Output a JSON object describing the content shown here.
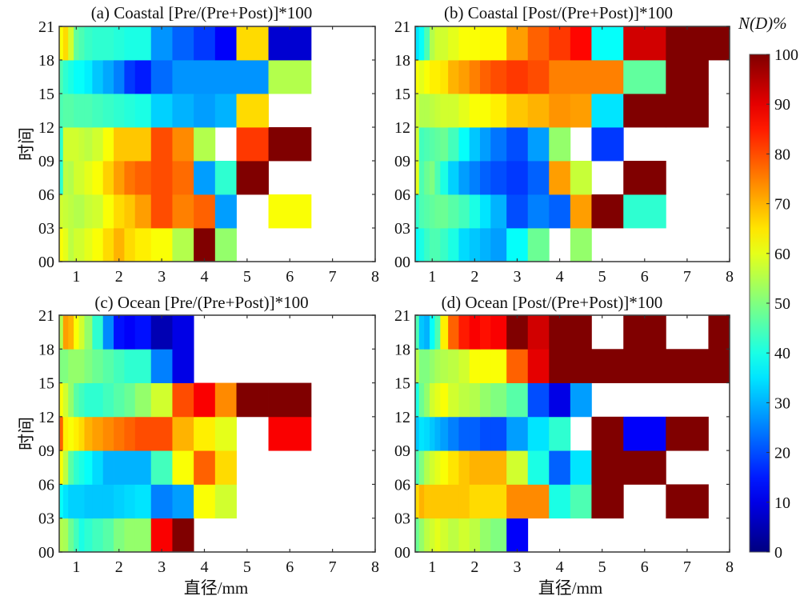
{
  "chart_data": {
    "type": "heatmap",
    "colormap": "jet",
    "colorbar": {
      "title": "N(D)%",
      "range": [
        0,
        100
      ],
      "ticks": [
        0,
        10,
        20,
        30,
        40,
        50,
        60,
        70,
        80,
        90,
        100
      ],
      "tick_labels": [
        "0",
        "10",
        "20",
        "30",
        "40",
        "50",
        "60",
        "70",
        "80",
        "90",
        "100"
      ],
      "placement": "right"
    },
    "x_bin_edges_mm": [
      0.6,
      0.69,
      0.81,
      0.94,
      1.06,
      1.19,
      1.375,
      1.625,
      1.875,
      2.125,
      2.375,
      2.75,
      3.25,
      3.75,
      4.25,
      4.75,
      5.5,
      6.5,
      7.5,
      8.0
    ],
    "xlim": [
      0.6,
      8.0
    ],
    "x_ticks": [
      1,
      2,
      3,
      4,
      5,
      6,
      7,
      8
    ],
    "x_tick_labels": [
      "1",
      "2",
      "3",
      "4",
      "5",
      "6",
      "7",
      "8"
    ],
    "y_bins": [
      "00-03",
      "03-06",
      "06-09",
      "09-12",
      "12-15",
      "15-18",
      "18-21"
    ],
    "y_ticks": [
      "00",
      "03",
      "06",
      "09",
      "12",
      "15",
      "18",
      "21"
    ],
    "xlabel": "直径/mm",
    "ylabel": "时间",
    "missing_color": "#ffffff",
    "panels": [
      {
        "id": "a",
        "title": "(a) Coastal [Pre/(Pre+Post)]*100",
        "show_ylabel": true,
        "show_xlabel": false,
        "values_rows_bottom_to_top": [
          [
            62,
            60,
            56,
            58,
            58,
            60,
            62,
            66,
            70,
            66,
            64,
            62,
            55,
            100,
            52,
            null,
            null,
            null,
            null
          ],
          [
            58,
            57,
            56,
            55,
            55,
            57,
            58,
            62,
            66,
            68,
            72,
            80,
            75,
            78,
            28,
            null,
            62,
            null,
            null
          ],
          [
            42,
            56,
            55,
            58,
            58,
            60,
            62,
            67,
            72,
            76,
            78,
            80,
            77,
            28,
            42,
            100,
            null,
            null,
            null
          ],
          [
            42,
            58,
            58,
            58,
            57,
            56,
            58,
            62,
            68,
            68,
            68,
            80,
            74,
            55,
            null,
            82,
            100,
            null,
            null
          ],
          [
            45,
            46,
            46,
            45,
            45,
            45,
            44,
            43,
            42,
            41,
            40,
            33,
            30,
            28,
            30,
            66,
            null,
            null,
            null
          ],
          [
            45,
            42,
            40,
            38,
            38,
            36,
            32,
            29,
            25,
            18,
            15,
            23,
            27,
            27,
            27,
            27,
            55,
            null,
            null
          ],
          [
            62,
            66,
            58,
            47,
            45,
            43,
            42,
            42,
            41,
            40,
            40,
            27,
            22,
            18,
            12,
            66,
            8,
            null,
            null
          ]
        ]
      },
      {
        "id": "b",
        "title": "(b) Coastal [Post/(Pre+Post)]*100",
        "show_ylabel": false,
        "show_xlabel": false,
        "values_rows_bottom_to_top": [
          [
            38,
            40,
            43,
            45,
            45,
            43,
            40,
            34,
            32,
            30,
            28,
            38,
            48,
            null,
            52,
            null,
            null,
            null,
            null
          ],
          [
            42,
            45,
            46,
            47,
            48,
            48,
            46,
            44,
            40,
            35,
            30,
            20,
            25,
            22,
            72,
            100,
            42,
            null,
            null
          ],
          [
            60,
            45,
            48,
            50,
            45,
            40,
            33,
            28,
            25,
            22,
            20,
            18,
            22,
            72,
            57,
            null,
            100,
            null,
            null
          ],
          [
            58,
            44,
            45,
            46,
            47,
            48,
            44,
            38,
            32,
            28,
            24,
            20,
            28,
            52,
            null,
            18,
            null,
            null,
            null
          ],
          [
            58,
            55,
            55,
            56,
            57,
            58,
            58,
            60,
            62,
            62,
            64,
            68,
            70,
            73,
            72,
            35,
            100,
            100,
            null
          ],
          [
            62,
            60,
            62,
            64,
            64,
            65,
            70,
            72,
            75,
            78,
            80,
            82,
            80,
            75,
            75,
            75,
            47,
            100,
            null
          ],
          [
            35,
            38,
            45,
            55,
            58,
            58,
            60,
            62,
            62,
            63,
            63,
            72,
            78,
            82,
            87,
            38,
            92,
            100,
            100
          ]
        ]
      },
      {
        "id": "c",
        "title": "(c) Ocean [Pre/(Pre+Post)]*100",
        "show_ylabel": true,
        "show_xlabel": true,
        "values_rows_bottom_to_top": [
          [
            55,
            54,
            48,
            44,
            40,
            42,
            44,
            46,
            50,
            52,
            52,
            88,
            100,
            null,
            null,
            null,
            null,
            null,
            null
          ],
          [
            38,
            35,
            33,
            33,
            33,
            32,
            32,
            32,
            33,
            34,
            35,
            25,
            28,
            62,
            58,
            null,
            null,
            null,
            null
          ],
          [
            62,
            56,
            46,
            42,
            40,
            38,
            34,
            30,
            30,
            30,
            30,
            44,
            62,
            78,
            66,
            null,
            null,
            null,
            null
          ],
          [
            78,
            64,
            62,
            64,
            66,
            70,
            72,
            74,
            76,
            78,
            80,
            80,
            70,
            64,
            60,
            null,
            88,
            null,
            null
          ],
          [
            62,
            58,
            52,
            46,
            44,
            42,
            42,
            44,
            46,
            48,
            52,
            58,
            80,
            88,
            74,
            100,
            100,
            null,
            null
          ],
          [
            50,
            50,
            52,
            52,
            52,
            50,
            48,
            46,
            44,
            42,
            42,
            25,
            10,
            null,
            null,
            null,
            null,
            null,
            null
          ],
          [
            55,
            72,
            70,
            62,
            58,
            52,
            42,
            26,
            14,
            12,
            14,
            5,
            10,
            null,
            null,
            null,
            null,
            null,
            null
          ]
        ]
      },
      {
        "id": "d",
        "title": "(d) Ocean [Post/(Pre+Post)]*100",
        "show_ylabel": false,
        "show_xlabel": true,
        "values_rows_bottom_to_top": [
          [
            48,
            52,
            56,
            58,
            60,
            58,
            56,
            58,
            56,
            52,
            50,
            12,
            null,
            null,
            null,
            null,
            null,
            null,
            null
          ],
          [
            66,
            70,
            68,
            68,
            68,
            68,
            68,
            68,
            66,
            66,
            66,
            74,
            74,
            40,
            45,
            100,
            null,
            100,
            null
          ],
          [
            45,
            50,
            55,
            58,
            60,
            62,
            65,
            68,
            70,
            70,
            70,
            58,
            40,
            22,
            35,
            100,
            100,
            null,
            null
          ],
          [
            32,
            35,
            34,
            32,
            30,
            28,
            25,
            22,
            22,
            20,
            20,
            28,
            35,
            42,
            null,
            100,
            12,
            100,
            null
          ],
          [
            40,
            48,
            52,
            58,
            60,
            62,
            58,
            56,
            55,
            52,
            50,
            46,
            20,
            10,
            28,
            null,
            null,
            null,
            null
          ],
          [
            55,
            50,
            50,
            52,
            54,
            55,
            56,
            58,
            62,
            62,
            62,
            78,
            90,
            100,
            100,
            100,
            100,
            100,
            100
          ],
          [
            45,
            32,
            30,
            38,
            45,
            64,
            78,
            85,
            88,
            86,
            88,
            100,
            92,
            100,
            100,
            null,
            100,
            null,
            100
          ]
        ]
      }
    ]
  }
}
